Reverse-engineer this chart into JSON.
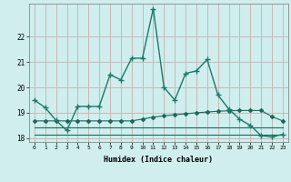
{
  "x": [
    0,
    1,
    2,
    3,
    4,
    5,
    6,
    7,
    8,
    9,
    10,
    11,
    12,
    13,
    14,
    15,
    16,
    17,
    18,
    19,
    20,
    21,
    22,
    23
  ],
  "y_main": [
    19.5,
    19.2,
    18.7,
    18.3,
    19.25,
    19.25,
    19.25,
    20.5,
    20.3,
    21.15,
    21.15,
    23.1,
    20.0,
    19.5,
    20.55,
    20.65,
    21.1,
    19.7,
    19.15,
    18.75,
    18.5,
    18.1,
    18.05,
    18.15
  ],
  "y_upper": [
    18.68,
    18.68,
    18.68,
    18.68,
    18.68,
    18.68,
    18.68,
    18.68,
    18.68,
    18.68,
    18.75,
    18.83,
    18.88,
    18.92,
    18.96,
    19.0,
    19.03,
    19.06,
    19.08,
    19.09,
    19.09,
    19.09,
    18.85,
    18.68
  ],
  "y_mid": [
    18.42,
    18.42,
    18.42,
    18.42,
    18.42,
    18.42,
    18.42,
    18.42,
    18.42,
    18.42,
    18.42,
    18.42,
    18.42,
    18.42,
    18.42,
    18.42,
    18.42,
    18.42,
    18.42,
    18.42,
    18.42,
    18.42,
    18.42,
    18.42
  ],
  "y_lower": [
    18.15,
    18.15,
    18.15,
    18.15,
    18.15,
    18.15,
    18.15,
    18.15,
    18.15,
    18.15,
    18.15,
    18.15,
    18.15,
    18.15,
    18.15,
    18.15,
    18.15,
    18.15,
    18.15,
    18.15,
    18.15,
    18.15,
    18.15,
    18.15
  ],
  "main_color": "#1a7a6a",
  "ref_color": "#1a6a5a",
  "bg_color": "#d0eeee",
  "grid_color": "#c8b8b8",
  "xlabel": "Humidex (Indice chaleur)",
  "ylim": [
    17.85,
    23.3
  ],
  "yticks": [
    18,
    19,
    20,
    21,
    22
  ],
  "xticks": [
    0,
    1,
    2,
    3,
    4,
    5,
    6,
    7,
    8,
    9,
    10,
    11,
    12,
    13,
    14,
    15,
    16,
    17,
    18,
    19,
    20,
    21,
    22,
    23
  ]
}
